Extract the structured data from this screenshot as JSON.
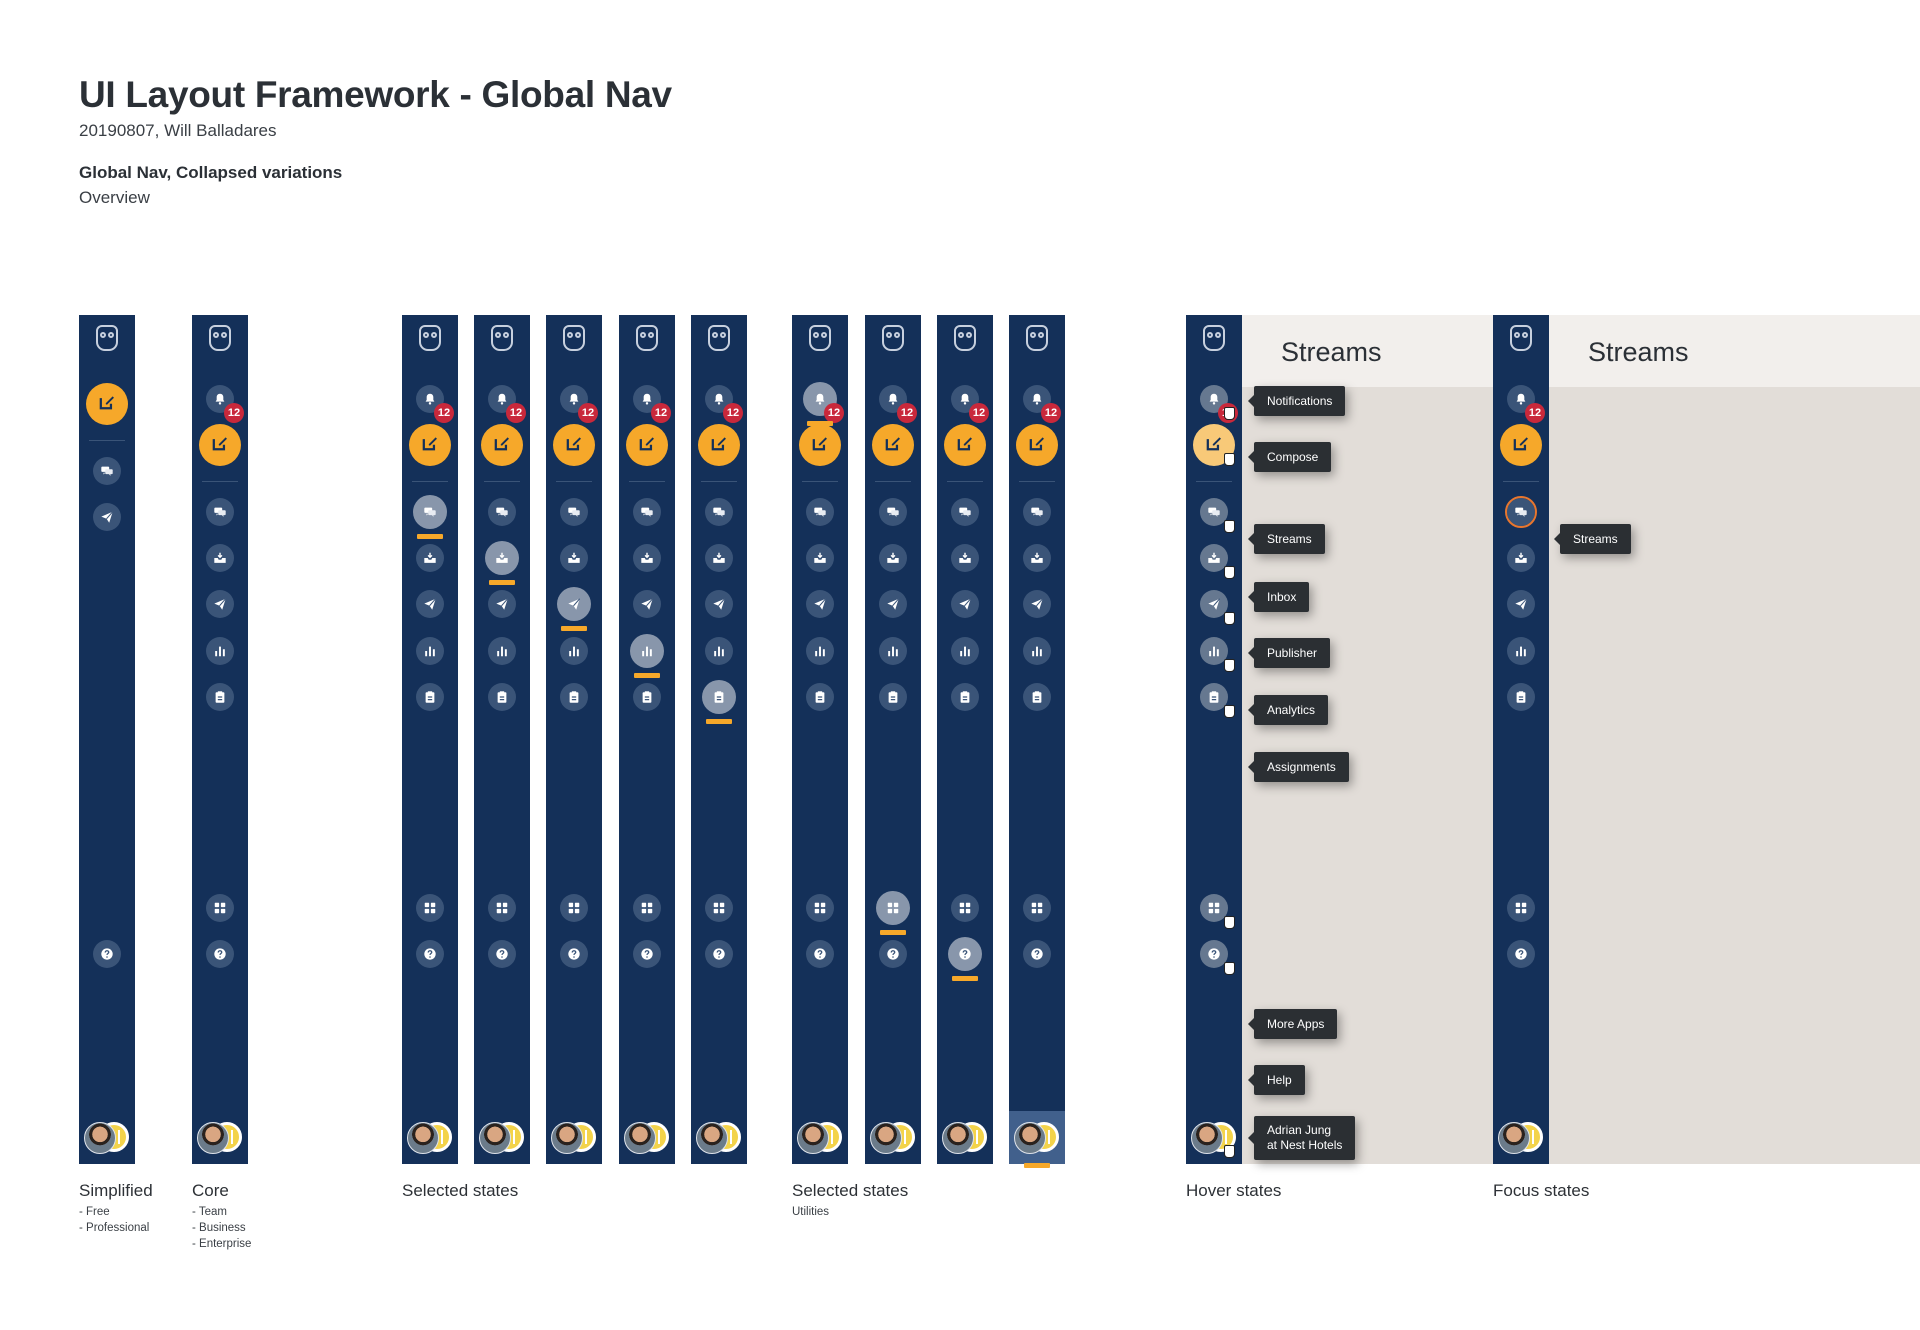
{
  "doc": {
    "title": "UI Layout Framework - Global Nav",
    "author": "20190807, Will Balladares",
    "section_title": "Global Nav, Collapsed variations",
    "section_sub": "Overview"
  },
  "badge_count": "12",
  "colors": {
    "nav": "#143059",
    "accent": "#f6a82a",
    "badge": "#c9283b",
    "focus": "#e8762e"
  },
  "icons": [
    "bell-icon",
    "compose-icon",
    "streams-icon",
    "inbox-icon",
    "publisher-icon",
    "analytics-icon",
    "assignments-icon",
    "apps-icon",
    "help-icon"
  ],
  "groups": {
    "simplified": {
      "caption": "Simplified",
      "sub": [
        "- Free",
        "- Professional"
      ]
    },
    "core": {
      "caption": "Core",
      "sub": [
        "- Team",
        "- Business",
        "- Enterprise"
      ]
    },
    "selected": {
      "caption": "Selected states"
    },
    "selected_utilities": {
      "caption": "Selected states",
      "sub": [
        "Utilities"
      ]
    },
    "hover": {
      "caption": "Hover states"
    },
    "focus": {
      "caption": "Focus states"
    }
  },
  "panel_title": "Streams",
  "tooltips": {
    "notifications": "Notifications",
    "compose": "Compose",
    "streams": "Streams",
    "inbox": "Inbox",
    "publisher": "Publisher",
    "analytics": "Analytics",
    "assignments": "Assignments",
    "more_apps": "More Apps",
    "help": "Help",
    "profile_line1": "Adrian Jung",
    "profile_line2": "at Nest Hotels"
  }
}
